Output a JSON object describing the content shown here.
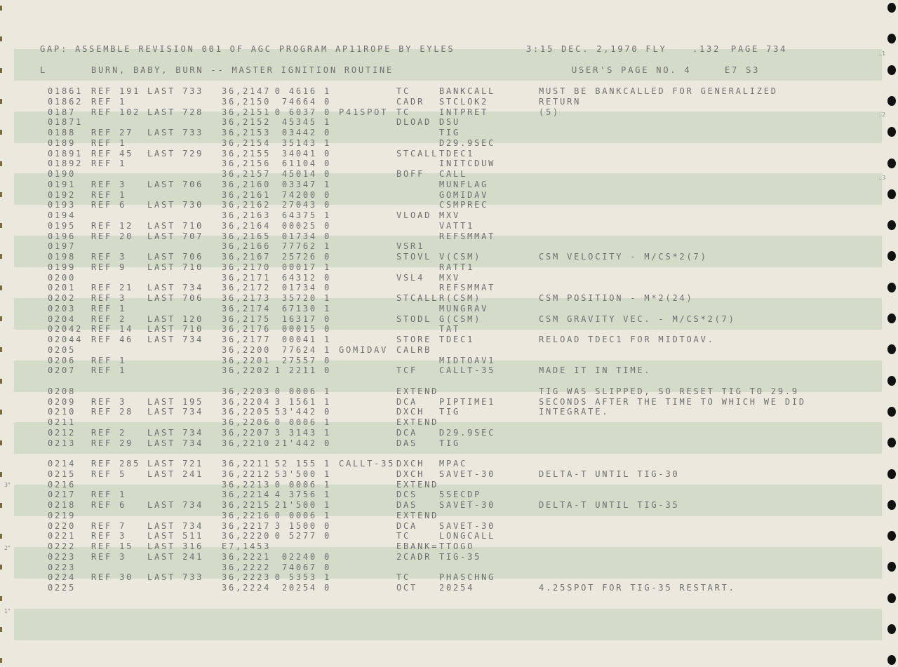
{
  "header": {
    "line1": {
      "title": "GAP: ASSEMBLE REVISION 001 OF AGC PROGRAM AP11ROPE BY EYLES",
      "date": "3:15 DEC. 2,1970 FLY",
      "code": ".132",
      "page": "PAGE 734"
    },
    "line2": {
      "flag": "L",
      "routine": "BURN, BABY, BURN -- MASTER IGNITION ROUTINE",
      "user_page": "USER'S PAGE NO. 4",
      "sheet": "E7 S3"
    }
  },
  "listing": {
    "blocks": [
      [
        {
          "line": "01861",
          "ref": "REF 191",
          "last": "LAST 733",
          "addr": "36,2147",
          "word": "0 4616 1",
          "op": "TC",
          "operand": "BANKCALL",
          "comment": "MUST BE BANKCALLED FOR GENERALIZED"
        },
        {
          "line": "01862",
          "ref": "REF 1",
          "addr": "36,2150",
          "word": "74664 0",
          "op": "CADR",
          "operand": "STCLOK2",
          "comment": "RETURN"
        },
        {
          "line": "0187",
          "ref": "REF 102",
          "last": "LAST 728",
          "addr": "36,2151",
          "word": "0 6037 0",
          "label": "P41SPOT",
          "op": "TC",
          "operand": "INTPRET",
          "comment": "(5)"
        },
        {
          "line": "01871",
          "addr": "36,2152",
          "word": "45345 1",
          "op": "DLOAD",
          "operand": "DSU"
        },
        {
          "line": "0188",
          "ref": "REF 27",
          "last": "LAST 733",
          "addr": "36,2153",
          "word": "03442 0",
          "operand": "TIG"
        },
        {
          "line": "0189",
          "ref": "REF 1",
          "addr": "36,2154",
          "word": "35143 1",
          "operand": "D29.9SEC"
        },
        {
          "line": "01891",
          "ref": "REF 45",
          "last": "LAST 729",
          "addr": "36,2155",
          "word": "34041 0",
          "op": "STCALL",
          "operand": "TDEC1"
        },
        {
          "line": "01892",
          "ref": "REF 1",
          "addr": "36,2156",
          "word": "61104 0",
          "operand": "INITCDUW"
        },
        {
          "line": "0190",
          "addr": "36,2157",
          "word": "45014 0",
          "op": "BOFF",
          "operand": "CALL"
        },
        {
          "line": "0191",
          "ref": "REF 3",
          "last": "LAST 706",
          "addr": "36,2160",
          "word": "03347 1",
          "operand": "MUNFLAG"
        },
        {
          "line": "0192",
          "ref": "REF 1",
          "addr": "36,2161",
          "word": "74200 0",
          "operand": "GOMIDAV"
        },
        {
          "line": "0193",
          "ref": "REF 6",
          "last": "LAST 730",
          "addr": "36,2162",
          "word": "27043 0",
          "operand": "CSMPREC"
        },
        {
          "line": "0194",
          "addr": "36,2163",
          "word": "64375 1",
          "op": "VLOAD",
          "operand": "MXV"
        },
        {
          "line": "0195",
          "ref": "REF 12",
          "last": "LAST 710",
          "addr": "36,2164",
          "word": "00025 0",
          "operand": "VATT1"
        },
        {
          "line": "0196",
          "ref": "REF 20",
          "last": "LAST 707",
          "addr": "36,2165",
          "word": "01734 0",
          "operand": "REFSMMAT"
        },
        {
          "line": "0197",
          "addr": "36,2166",
          "word": "77762 1",
          "op": "VSR1"
        },
        {
          "line": "0198",
          "ref": "REF 3",
          "last": "LAST 706",
          "addr": "36,2167",
          "word": "25726 0",
          "op": "STOVL",
          "operand": "V(CSM)",
          "comment": "CSM VELOCITY - M/CS*2(7)"
        },
        {
          "line": "0199",
          "ref": "REF 9",
          "last": "LAST 710",
          "addr": "36,2170",
          "word": "00017 1",
          "operand": "RATT1"
        },
        {
          "line": "0200",
          "addr": "36,2171",
          "word": "64312 0",
          "op": "VSL4",
          "operand": "MXV"
        },
        {
          "line": "0201",
          "ref": "REF 21",
          "last": "LAST 734",
          "addr": "36,2172",
          "word": "01734 0",
          "operand": "REFSMMAT"
        },
        {
          "line": "0202",
          "ref": "REF 3",
          "last": "LAST 706",
          "addr": "36,2173",
          "word": "35720 1",
          "op": "STCALL",
          "operand": "R(CSM)",
          "comment": "CSM POSITION - M*2(24)"
        },
        {
          "line": "0203",
          "ref": "REF 1",
          "addr": "36,2174",
          "word": "67130 1",
          "operand": "MUNGRAV"
        },
        {
          "line": "0204",
          "ref": "REF 2",
          "last": "LAST 120",
          "addr": "36,2175",
          "word": "16317 0",
          "op": "STODL",
          "operand": "G(CSM)",
          "comment": "CSM GRAVITY VEC. - M/CS*2(7)"
        },
        {
          "line": "02042",
          "ref": "REF 14",
          "last": "LAST 710",
          "addr": "36,2176",
          "word": "00015 0",
          "operand": "TAT"
        },
        {
          "line": "02044",
          "ref": "REF 46",
          "last": "LAST 734",
          "addr": "36,2177",
          "word": "00041 1",
          "op": "STORE",
          "operand": "TDEC1",
          "comment": "RELOAD TDEC1 FOR MIDTOAV."
        },
        {
          "line": "0205",
          "addr": "36,2200",
          "word": "77624 1",
          "label": "GOMIDAV",
          "op": "CALRB"
        },
        {
          "line": "0206",
          "ref": "REF 1",
          "addr": "36,2201",
          "word": "27557 0",
          "operand": "MIDTOAV1"
        },
        {
          "line": "0207",
          "ref": "REF 1",
          "addr": "36,2202",
          "word": "1 2211 0",
          "op": "TCF",
          "operand": "CALLT-35",
          "comment": "MADE IT IN TIME."
        }
      ],
      [
        {
          "line": "0208",
          "addr": "36,2203",
          "word": "0 0006 1",
          "op": "EXTEND",
          "comment": "TIG WAS SLIPPED, SO RESET TIG TO 29.9"
        },
        {
          "line": "0209",
          "ref": "REF 3",
          "last": "LAST 195",
          "addr": "36,2204",
          "word": "3 1561 1",
          "op": "DCA",
          "operand": "PIPTIME1",
          "comment": "SECONDS AFTER THE TIME TO WHICH WE DID"
        },
        {
          "line": "0210",
          "ref": "REF 28",
          "last": "LAST 734",
          "addr": "36,2205",
          "word": "53'442 0",
          "op": "DXCH",
          "operand": "TIG",
          "comment": "INTEGRATE."
        },
        {
          "line": "0211",
          "addr": "36,2206",
          "word": "0 0006 1",
          "op": "EXTEND"
        },
        {
          "line": "0212",
          "ref": "REF 2",
          "last": "LAST 734",
          "addr": "36,2207",
          "word": "3 3143 1",
          "op": "DCA",
          "operand": "D29.9SEC"
        },
        {
          "line": "0213",
          "ref": "REF 29",
          "last": "LAST 734",
          "addr": "36,2210",
          "word": "21'442 0",
          "op": "DAS",
          "operand": "TIG"
        }
      ],
      [
        {
          "line": "0214",
          "ref": "REF 285",
          "last": "LAST 721",
          "addr": "36,2211",
          "word": "52 155 1",
          "label": "CALLT-35",
          "op": "DXCH",
          "operand": "MPAC"
        },
        {
          "line": "0215",
          "ref": "REF 5",
          "last": "LAST 241",
          "addr": "36,2212",
          "word": "53'500 1",
          "op": "DXCH",
          "operand": "SAVET-30",
          "comment": "DELTA-T UNTIL TIG-30"
        },
        {
          "line": "0216",
          "addr": "36,2213",
          "word": "0 0006 1",
          "op": "EXTEND"
        },
        {
          "line": "0217",
          "ref": "REF 1",
          "addr": "36,2214",
          "word": "4 3756 1",
          "op": "DCS",
          "operand": "5SECDP"
        },
        {
          "line": "0218",
          "ref": "REF 6",
          "last": "LAST 734",
          "addr": "36,2215",
          "word": "21'500 1",
          "op": "DAS",
          "operand": "SAVET-30",
          "comment": "DELTA-T UNTIL TIG-35"
        },
        {
          "line": "0219",
          "addr": "36,2216",
          "word": "0 0006 1",
          "op": "EXTEND"
        },
        {
          "line": "0220",
          "ref": "REF 7",
          "last": "LAST 734",
          "addr": "36,2217",
          "word": "3 1500 0",
          "op": "DCA",
          "operand": "SAVET-30"
        },
        {
          "line": "0221",
          "ref": "REF 3",
          "last": "LAST 511",
          "addr": "36,2220",
          "word": "0 5277 0",
          "op": "TC",
          "operand": "LONGCALL"
        },
        {
          "line": "0222",
          "ref": "REF 15",
          "last": "LAST 316",
          "addr": "E7,1453",
          "op": "EBANK=",
          "operand": "TTOGO"
        },
        {
          "line": "0223",
          "ref": "REF 3",
          "last": "LAST 241",
          "addr": "36,2221",
          "word": "02240 0",
          "op": "2CADR",
          "operand": "TIG-35"
        },
        {
          "line": "0223",
          "addr": "36,2222",
          "word": "74067 0"
        },
        {
          "line": "0224",
          "ref": "REF 30",
          "last": "LAST 733",
          "addr": "36,2223",
          "word": "0 5353 1",
          "op": "TC",
          "operand": "PHASCHNG"
        },
        {
          "line": "0225",
          "addr": "36,2224",
          "word": "20254 0",
          "op": "OCT",
          "operand": "20254",
          "comment": "4.25SPOT FOR TIG-35 RESTART."
        }
      ]
    ]
  },
  "margins": {
    "left": [
      "3\"",
      "2\"",
      "1\""
    ],
    "right": [
      "..1",
      "..2",
      "..3"
    ]
  }
}
